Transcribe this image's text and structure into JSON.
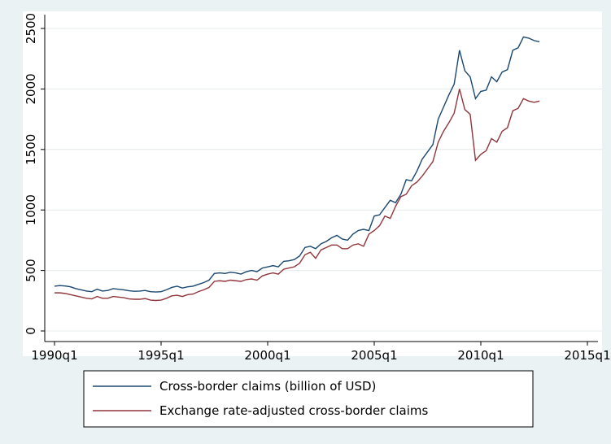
{
  "chart_data": {
    "type": "line",
    "x": [
      "1990q1",
      "1990q2",
      "1990q3",
      "1990q4",
      "1991q1",
      "1991q2",
      "1991q3",
      "1991q4",
      "1992q1",
      "1992q2",
      "1992q3",
      "1992q4",
      "1993q1",
      "1993q2",
      "1993q3",
      "1993q4",
      "1994q1",
      "1994q2",
      "1994q3",
      "1994q4",
      "1995q1",
      "1995q2",
      "1995q3",
      "1995q4",
      "1996q1",
      "1996q2",
      "1996q3",
      "1996q4",
      "1997q1",
      "1997q2",
      "1997q3",
      "1997q4",
      "1998q1",
      "1998q2",
      "1998q3",
      "1998q4",
      "1999q1",
      "1999q2",
      "1999q3",
      "1999q4",
      "2000q1",
      "2000q2",
      "2000q3",
      "2000q4",
      "2001q1",
      "2001q2",
      "2001q3",
      "2001q4",
      "2002q1",
      "2002q2",
      "2002q3",
      "2002q4",
      "2003q1",
      "2003q2",
      "2003q3",
      "2003q4",
      "2004q1",
      "2004q2",
      "2004q3",
      "2004q4",
      "2005q1",
      "2005q2",
      "2005q3",
      "2005q4",
      "2006q1",
      "2006q2",
      "2006q3",
      "2006q4",
      "2007q1",
      "2007q2",
      "2007q3",
      "2007q4",
      "2008q1",
      "2008q2",
      "2008q3",
      "2008q4",
      "2009q1",
      "2009q2",
      "2009q3",
      "2009q4",
      "2010q1",
      "2010q2",
      "2010q3",
      "2010q4",
      "2011q1",
      "2011q2",
      "2011q3",
      "2011q4",
      "2012q1",
      "2012q2",
      "2012q3",
      "2012q4"
    ],
    "series": [
      {
        "name": "Cross-border claims (billion of USD)",
        "color": "#1a476f",
        "values": [
          370,
          375,
          372,
          365,
          350,
          340,
          330,
          325,
          345,
          330,
          335,
          350,
          345,
          340,
          332,
          328,
          330,
          335,
          325,
          322,
          325,
          340,
          360,
          370,
          355,
          365,
          370,
          385,
          400,
          420,
          475,
          480,
          475,
          485,
          480,
          470,
          490,
          500,
          490,
          520,
          530,
          540,
          530,
          575,
          580,
          590,
          620,
          690,
          700,
          680,
          720,
          740,
          770,
          790,
          760,
          750,
          800,
          830,
          840,
          830,
          950,
          960,
          1020,
          1080,
          1060,
          1130,
          1250,
          1240,
          1320,
          1420,
          1480,
          1540,
          1750,
          1850,
          1950,
          2040,
          2320,
          2150,
          2100,
          1920,
          1980,
          1990,
          2100,
          2060,
          2140,
          2160,
          2320,
          2340,
          2430,
          2420,
          2400,
          2390
        ]
      },
      {
        "name": "Exchange rate-adjusted cross-border claims",
        "color": "#90353b",
        "values": [
          315,
          315,
          310,
          300,
          290,
          280,
          270,
          265,
          285,
          270,
          270,
          285,
          280,
          275,
          265,
          262,
          262,
          268,
          255,
          252,
          255,
          270,
          290,
          295,
          285,
          300,
          305,
          325,
          340,
          360,
          410,
          415,
          410,
          420,
          415,
          410,
          425,
          430,
          420,
          455,
          470,
          480,
          470,
          510,
          520,
          530,
          560,
          630,
          650,
          600,
          670,
          690,
          710,
          710,
          680,
          680,
          710,
          720,
          700,
          800,
          830,
          870,
          950,
          930,
          1030,
          1110,
          1130,
          1200,
          1230,
          1280,
          1340,
          1400,
          1560,
          1650,
          1720,
          1800,
          2000,
          1830,
          1790,
          1410,
          1460,
          1490,
          1590,
          1560,
          1650,
          1680,
          1820,
          1840,
          1920,
          1900,
          1890,
          1900
        ]
      }
    ],
    "xlim": [
      "1990q1",
      "2015q1"
    ],
    "xticks": [
      "1990q1",
      "1995q1",
      "2000q1",
      "2005q1",
      "2010q1",
      "2015q1"
    ],
    "ylim": [
      0,
      2500
    ],
    "yticks": [
      0,
      500,
      1000,
      1500,
      2000,
      2500
    ],
    "grid": true
  }
}
